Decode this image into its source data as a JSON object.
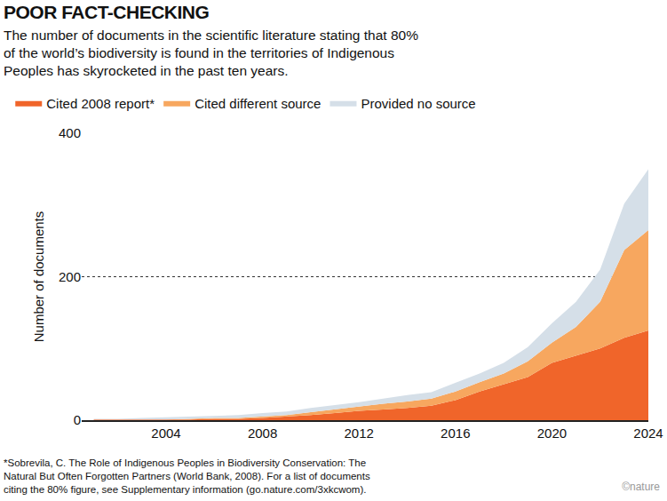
{
  "chart_data": {
    "type": "area",
    "title": "POOR FACT-CHECKING",
    "subtitle": [
      "The number of documents in the scientific literature stating that 80%",
      "of the world’s biodiversity is found in the territories of Indigenous",
      "Peoples has skyrocketed in the past ten years."
    ],
    "y_label": "Number of documents",
    "x": [
      2001,
      2002,
      2003,
      2004,
      2005,
      2006,
      2007,
      2008,
      2009,
      2010,
      2011,
      2012,
      2013,
      2014,
      2015,
      2016,
      2017,
      2018,
      2019,
      2020,
      2021,
      2022,
      2023,
      2024
    ],
    "series": [
      {
        "name": "Cited 2008 report*",
        "color": "#f0652a",
        "values": [
          1,
          1,
          1,
          1,
          1,
          2,
          2,
          3,
          5,
          7,
          10,
          13,
          15,
          17,
          20,
          28,
          40,
          50,
          60,
          80,
          90,
          100,
          115,
          125
        ]
      },
      {
        "name": "Cited different source",
        "color": "#f7a75f",
        "values": [
          0,
          0,
          0,
          0,
          1,
          1,
          1,
          2,
          2,
          4,
          5,
          6,
          8,
          9,
          10,
          12,
          13,
          15,
          22,
          28,
          40,
          65,
          122,
          140
        ]
      },
      {
        "name": "Provided no source",
        "color": "#d5dfe8",
        "values": [
          1,
          1,
          2,
          3,
          3,
          3,
          4,
          5,
          5,
          6,
          6,
          6,
          7,
          9,
          9,
          12,
          12,
          15,
          20,
          27,
          35,
          45,
          65,
          85
        ]
      }
    ],
    "xlim": [
      2000.5,
      2024
    ],
    "xticks": [
      2004,
      2008,
      2012,
      2016,
      2020,
      2024
    ],
    "ylim": [
      0,
      400
    ],
    "yticks": [
      0,
      200,
      400
    ],
    "stacked": true,
    "grid": true,
    "legend": "top left",
    "footnote": [
      "*Sobrevila, C. The Role of Indigenous Peoples in Biodiversity Conservation: The",
      "Natural But Often Forgotten Partners (World Bank, 2008). For a list of documents",
      "citing the 80% figure, see Supplementary information (go.nature.com/3xkcwom)."
    ],
    "credit": "©nature"
  }
}
